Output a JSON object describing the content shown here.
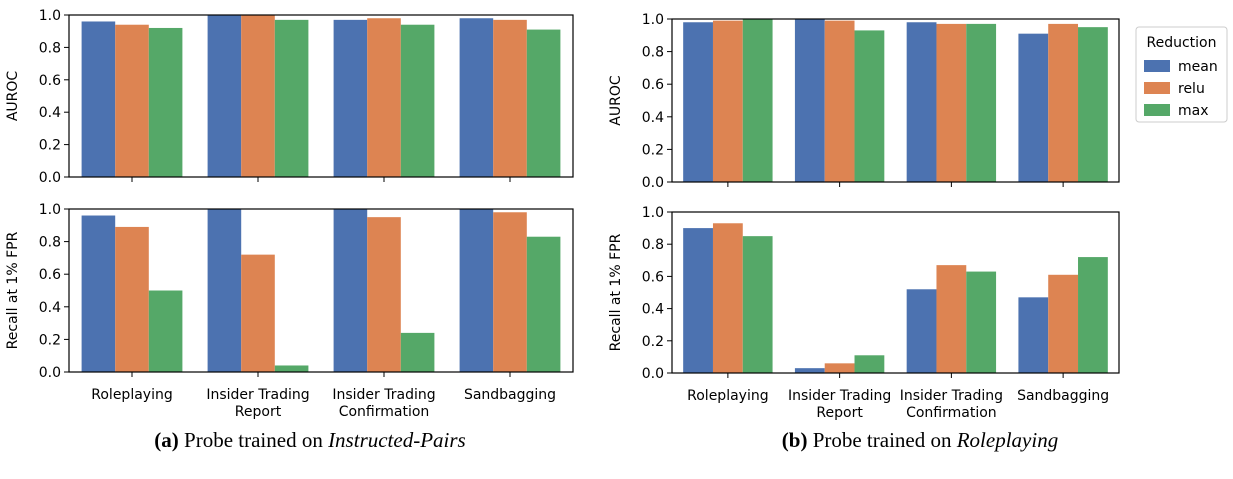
{
  "chart_data": [
    {
      "id": "a-auroc",
      "type": "bar",
      "panel": "a",
      "ylabel": "AUROC",
      "ylim": [
        0,
        1.0
      ],
      "yticks": [
        "0.0",
        "0.2",
        "0.4",
        "0.6",
        "0.8",
        "1.0"
      ],
      "categories": [
        [
          "Roleplaying"
        ],
        [
          "Insider Trading",
          "Report"
        ],
        [
          "Insider Trading",
          "Confirmation"
        ],
        [
          "Sandbagging"
        ]
      ],
      "show_xticklabels": false,
      "series": [
        {
          "name": "mean",
          "values": [
            0.96,
            1.0,
            0.97,
            0.98
          ]
        },
        {
          "name": "relu",
          "values": [
            0.94,
            1.0,
            0.98,
            0.97
          ]
        },
        {
          "name": "max",
          "values": [
            0.92,
            0.97,
            0.94,
            0.91
          ]
        }
      ]
    },
    {
      "id": "a-recall",
      "type": "bar",
      "panel": "a",
      "ylabel": "Recall at 1% FPR",
      "ylim": [
        0,
        1.0
      ],
      "yticks": [
        "0.0",
        "0.2",
        "0.4",
        "0.6",
        "0.8",
        "1.0"
      ],
      "categories": [
        [
          "Roleplaying"
        ],
        [
          "Insider Trading",
          "Report"
        ],
        [
          "Insider Trading",
          "Confirmation"
        ],
        [
          "Sandbagging"
        ]
      ],
      "show_xticklabels": true,
      "series": [
        {
          "name": "mean",
          "values": [
            0.96,
            1.0,
            1.0,
            1.0
          ]
        },
        {
          "name": "relu",
          "values": [
            0.89,
            0.72,
            0.95,
            0.98
          ]
        },
        {
          "name": "max",
          "values": [
            0.5,
            0.04,
            0.24,
            0.83
          ]
        }
      ]
    },
    {
      "id": "b-auroc",
      "type": "bar",
      "panel": "b",
      "ylabel": "AUROC",
      "ylim": [
        0,
        1.0
      ],
      "yticks": [
        "0.0",
        "0.2",
        "0.4",
        "0.6",
        "0.8",
        "1.0"
      ],
      "categories": [
        [
          "Roleplaying"
        ],
        [
          "Insider Trading",
          "Report"
        ],
        [
          "Insider Trading",
          "Confirmation"
        ],
        [
          "Sandbagging"
        ]
      ],
      "show_xticklabels": false,
      "series": [
        {
          "name": "mean",
          "values": [
            0.98,
            1.0,
            0.98,
            0.91
          ]
        },
        {
          "name": "relu",
          "values": [
            0.99,
            0.99,
            0.97,
            0.97
          ]
        },
        {
          "name": "max",
          "values": [
            1.0,
            0.93,
            0.97,
            0.95
          ]
        }
      ]
    },
    {
      "id": "b-recall",
      "type": "bar",
      "panel": "b",
      "ylabel": "Recall at 1% FPR",
      "ylim": [
        0,
        1.0
      ],
      "yticks": [
        "0.0",
        "0.2",
        "0.4",
        "0.6",
        "0.8",
        "1.0"
      ],
      "categories": [
        [
          "Roleplaying"
        ],
        [
          "Insider Trading",
          "Report"
        ],
        [
          "Insider Trading",
          "Confirmation"
        ],
        [
          "Sandbagging"
        ]
      ],
      "show_xticklabels": true,
      "series": [
        {
          "name": "mean",
          "values": [
            0.9,
            0.03,
            0.52,
            0.47
          ]
        },
        {
          "name": "relu",
          "values": [
            0.93,
            0.06,
            0.67,
            0.61
          ]
        },
        {
          "name": "max",
          "values": [
            0.85,
            0.11,
            0.63,
            0.72
          ]
        }
      ]
    }
  ],
  "legend": {
    "title": "Reduction",
    "placement": "right of panel (b)",
    "entries": [
      "mean",
      "relu",
      "max"
    ]
  },
  "colors": {
    "mean": "#4c72b0",
    "relu": "#dd8452",
    "max": "#55a868"
  },
  "captions": {
    "a": {
      "label": "(a)",
      "text": " Probe trained on ",
      "emph": "Instructed-Pairs"
    },
    "b": {
      "label": "(b)",
      "text": " Probe trained on ",
      "emph": "Roleplaying"
    }
  }
}
